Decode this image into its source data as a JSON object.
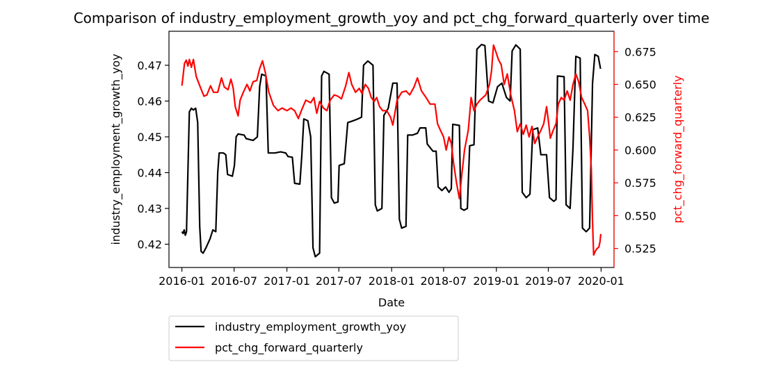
{
  "chart_data": {
    "type": "line",
    "title": "Comparison of industry_employment_growth_yoy and pct_chg_forward_quarterly over time",
    "xlabel": "Date",
    "ylabel_left": "industry_employment_growth_yoy",
    "ylabel_right": "pct_chg_forward_quarterly",
    "x_ticks": [
      "2016-01",
      "2016-07",
      "2017-01",
      "2017-07",
      "2018-01",
      "2018-07",
      "2019-01",
      "2019-07",
      "2020-01"
    ],
    "y_left_ticks": [
      "0.42",
      "0.43",
      "0.44",
      "0.45",
      "0.46",
      "0.47"
    ],
    "y_right_ticks": [
      "0.525",
      "0.550",
      "0.575",
      "0.600",
      "0.625",
      "0.650",
      "0.675"
    ],
    "y_left_lim": [
      0.4135,
      0.4795
    ],
    "y_right_lim": [
      0.5105,
      0.6905
    ],
    "x_lim": [
      "2015-11-17",
      "2020-02-15"
    ],
    "legend_position": "below-left",
    "grid": false,
    "colors": {
      "left_series": "#000000",
      "right_series": "#ff0000"
    },
    "series": [
      {
        "name": "industry_employment_growth_yoy",
        "axis": "left",
        "color": "#000000",
        "points": [
          [
            "2016-01-01",
            0.4235
          ],
          [
            "2016-01-05",
            0.423
          ],
          [
            "2016-01-09",
            0.424
          ],
          [
            "2016-01-13",
            0.4225
          ],
          [
            "2016-01-17",
            0.4235
          ],
          [
            "2016-01-22",
            0.44
          ],
          [
            "2016-01-27",
            0.457
          ],
          [
            "2016-02-03",
            0.458
          ],
          [
            "2016-02-10",
            0.4575
          ],
          [
            "2016-02-18",
            0.458
          ],
          [
            "2016-02-25",
            0.454
          ],
          [
            "2016-03-03",
            0.425
          ],
          [
            "2016-03-08",
            0.418
          ],
          [
            "2016-03-15",
            0.4175
          ],
          [
            "2016-03-25",
            0.419
          ],
          [
            "2016-04-08",
            0.4215
          ],
          [
            "2016-04-18",
            0.424
          ],
          [
            "2016-04-28",
            0.4235
          ],
          [
            "2016-05-05",
            0.44
          ],
          [
            "2016-05-10",
            0.4455
          ],
          [
            "2016-05-25",
            0.4455
          ],
          [
            "2016-06-02",
            0.445
          ],
          [
            "2016-06-08",
            0.4395
          ],
          [
            "2016-06-25",
            0.439
          ],
          [
            "2016-07-02",
            0.442
          ],
          [
            "2016-07-08",
            0.45
          ],
          [
            "2016-07-15",
            0.4508
          ],
          [
            "2016-08-05",
            0.4505
          ],
          [
            "2016-08-12",
            0.4495
          ],
          [
            "2016-09-05",
            0.449
          ],
          [
            "2016-09-20",
            0.45
          ],
          [
            "2016-09-28",
            0.464
          ],
          [
            "2016-10-05",
            0.4675
          ],
          [
            "2016-10-20",
            0.467
          ],
          [
            "2016-10-28",
            0.4455
          ],
          [
            "2016-11-20",
            0.4455
          ],
          [
            "2016-12-10",
            0.4458
          ],
          [
            "2016-12-28",
            0.4455
          ],
          [
            "2017-01-05",
            0.4445
          ],
          [
            "2017-01-20",
            0.4443
          ],
          [
            "2017-01-28",
            0.437
          ],
          [
            "2017-02-15",
            0.4368
          ],
          [
            "2017-02-22",
            0.445
          ],
          [
            "2017-03-01",
            0.455
          ],
          [
            "2017-03-15",
            0.4545
          ],
          [
            "2017-03-25",
            0.45
          ],
          [
            "2017-04-02",
            0.419
          ],
          [
            "2017-04-10",
            0.4165
          ],
          [
            "2017-04-25",
            0.4175
          ],
          [
            "2017-05-02",
            0.467
          ],
          [
            "2017-05-10",
            0.4683
          ],
          [
            "2017-05-28",
            0.4675
          ],
          [
            "2017-06-05",
            0.433
          ],
          [
            "2017-06-15",
            0.4315
          ],
          [
            "2017-06-28",
            0.4318
          ],
          [
            "2017-07-02",
            0.442
          ],
          [
            "2017-07-20",
            0.4425
          ],
          [
            "2017-08-01",
            0.454
          ],
          [
            "2017-08-20",
            0.4545
          ],
          [
            "2017-09-05",
            0.455
          ],
          [
            "2017-09-18",
            0.4555
          ],
          [
            "2017-09-25",
            0.47
          ],
          [
            "2017-10-10",
            0.4712
          ],
          [
            "2017-10-28",
            0.47
          ],
          [
            "2017-11-05",
            0.431
          ],
          [
            "2017-11-12",
            0.4293
          ],
          [
            "2017-11-28",
            0.43
          ],
          [
            "2017-12-05",
            0.456
          ],
          [
            "2017-12-20",
            0.458
          ],
          [
            "2018-01-05",
            0.465
          ],
          [
            "2018-01-20",
            0.465
          ],
          [
            "2018-01-28",
            0.427
          ],
          [
            "2018-02-05",
            0.4245
          ],
          [
            "2018-02-20",
            0.425
          ],
          [
            "2018-02-26",
            0.4505
          ],
          [
            "2018-03-15",
            0.4505
          ],
          [
            "2018-04-01",
            0.451
          ],
          [
            "2018-04-10",
            0.4525
          ],
          [
            "2018-04-30",
            0.4525
          ],
          [
            "2018-05-05",
            0.448
          ],
          [
            "2018-05-25",
            0.446
          ],
          [
            "2018-06-05",
            0.446
          ],
          [
            "2018-06-12",
            0.436
          ],
          [
            "2018-06-25",
            0.435
          ],
          [
            "2018-07-08",
            0.436
          ],
          [
            "2018-07-20",
            0.4345
          ],
          [
            "2018-07-28",
            0.4355
          ],
          [
            "2018-08-02",
            0.4535
          ],
          [
            "2018-08-25",
            0.4532
          ],
          [
            "2018-08-30",
            0.43
          ],
          [
            "2018-09-10",
            0.4295
          ],
          [
            "2018-09-22",
            0.43
          ],
          [
            "2018-09-30",
            0.4475
          ],
          [
            "2018-10-15",
            0.4478
          ],
          [
            "2018-10-25",
            0.4745
          ],
          [
            "2018-11-10",
            0.4758
          ],
          [
            "2018-11-22",
            0.4755
          ],
          [
            "2018-12-05",
            0.46
          ],
          [
            "2018-12-20",
            0.4595
          ],
          [
            "2019-01-05",
            0.464
          ],
          [
            "2019-01-20",
            0.465
          ],
          [
            "2019-02-05",
            0.461
          ],
          [
            "2019-02-18",
            0.46
          ],
          [
            "2019-02-25",
            0.474
          ],
          [
            "2019-03-10",
            0.4757
          ],
          [
            "2019-03-25",
            0.4745
          ],
          [
            "2019-04-01",
            0.4345
          ],
          [
            "2019-04-15",
            0.433
          ],
          [
            "2019-04-28",
            0.434
          ],
          [
            "2019-05-08",
            0.452
          ],
          [
            "2019-05-25",
            0.4525
          ],
          [
            "2019-06-05",
            0.445
          ],
          [
            "2019-06-25",
            0.445
          ],
          [
            "2019-07-05",
            0.433
          ],
          [
            "2019-07-20",
            0.432
          ],
          [
            "2019-07-28",
            0.4325
          ],
          [
            "2019-08-02",
            0.467
          ],
          [
            "2019-08-25",
            0.4668
          ],
          [
            "2019-09-01",
            0.431
          ],
          [
            "2019-09-15",
            0.43
          ],
          [
            "2019-09-25",
            0.447
          ],
          [
            "2019-10-05",
            0.4725
          ],
          [
            "2019-10-20",
            0.472
          ],
          [
            "2019-10-28",
            0.4245
          ],
          [
            "2019-11-10",
            0.4235
          ],
          [
            "2019-11-22",
            0.4245
          ],
          [
            "2019-12-02",
            0.465
          ],
          [
            "2019-12-10",
            0.473
          ],
          [
            "2019-12-22",
            0.4725
          ],
          [
            "2019-12-30",
            0.469
          ]
        ]
      },
      {
        "name": "pct_chg_forward_quarterly",
        "axis": "right",
        "color": "#ff0000",
        "points": [
          [
            "2016-01-01",
            0.649
          ],
          [
            "2016-01-05",
            0.656
          ],
          [
            "2016-01-10",
            0.666
          ],
          [
            "2016-01-16",
            0.6685
          ],
          [
            "2016-01-22",
            0.664
          ],
          [
            "2016-01-27",
            0.669
          ],
          [
            "2016-02-03",
            0.663
          ],
          [
            "2016-02-10",
            0.669
          ],
          [
            "2016-02-20",
            0.656
          ],
          [
            "2016-03-05",
            0.648
          ],
          [
            "2016-03-18",
            0.641
          ],
          [
            "2016-03-28",
            0.642
          ],
          [
            "2016-04-10",
            0.649
          ],
          [
            "2016-04-20",
            0.644
          ],
          [
            "2016-05-05",
            0.644
          ],
          [
            "2016-05-18",
            0.655
          ],
          [
            "2016-05-28",
            0.648
          ],
          [
            "2016-06-10",
            0.646
          ],
          [
            "2016-06-20",
            0.654
          ],
          [
            "2016-06-28",
            0.647
          ],
          [
            "2016-07-05",
            0.633
          ],
          [
            "2016-07-15",
            0.626
          ],
          [
            "2016-07-22",
            0.638
          ],
          [
            "2016-08-02",
            0.644
          ],
          [
            "2016-08-15",
            0.65
          ],
          [
            "2016-08-25",
            0.645
          ],
          [
            "2016-09-05",
            0.652
          ],
          [
            "2016-09-18",
            0.653
          ],
          [
            "2016-09-28",
            0.662
          ],
          [
            "2016-10-08",
            0.668
          ],
          [
            "2016-10-18",
            0.659
          ],
          [
            "2016-10-30",
            0.644
          ],
          [
            "2016-11-15",
            0.634
          ],
          [
            "2016-12-01",
            0.63
          ],
          [
            "2016-12-15",
            0.632
          ],
          [
            "2017-01-01",
            0.63
          ],
          [
            "2017-01-15",
            0.632
          ],
          [
            "2017-01-28",
            0.63
          ],
          [
            "2017-02-10",
            0.624
          ],
          [
            "2017-02-22",
            0.631
          ],
          [
            "2017-03-08",
            0.638
          ],
          [
            "2017-03-25",
            0.636
          ],
          [
            "2017-04-05",
            0.64
          ],
          [
            "2017-04-15",
            0.628
          ],
          [
            "2017-04-25",
            0.637
          ],
          [
            "2017-05-08",
            0.632
          ],
          [
            "2017-05-20",
            0.63
          ],
          [
            "2017-06-01",
            0.638
          ],
          [
            "2017-06-15",
            0.642
          ],
          [
            "2017-06-28",
            0.641
          ],
          [
            "2017-07-10",
            0.639
          ],
          [
            "2017-07-25",
            0.649
          ],
          [
            "2017-08-05",
            0.659
          ],
          [
            "2017-08-15",
            0.65
          ],
          [
            "2017-08-28",
            0.644
          ],
          [
            "2017-09-10",
            0.647
          ],
          [
            "2017-09-20",
            0.643
          ],
          [
            "2017-10-01",
            0.65
          ],
          [
            "2017-10-12",
            0.647
          ],
          [
            "2017-10-22",
            0.64
          ],
          [
            "2017-11-01",
            0.637
          ],
          [
            "2017-11-10",
            0.64
          ],
          [
            "2017-11-20",
            0.633
          ],
          [
            "2017-12-01",
            0.63
          ],
          [
            "2017-12-15",
            0.63
          ],
          [
            "2017-12-28",
            0.625
          ],
          [
            "2018-01-05",
            0.619
          ],
          [
            "2018-01-20",
            0.638
          ],
          [
            "2018-02-05",
            0.644
          ],
          [
            "2018-02-20",
            0.645
          ],
          [
            "2018-03-05",
            0.642
          ],
          [
            "2018-03-20",
            0.648
          ],
          [
            "2018-04-01",
            0.655
          ],
          [
            "2018-04-15",
            0.645
          ],
          [
            "2018-05-01",
            0.64
          ],
          [
            "2018-05-15",
            0.635
          ],
          [
            "2018-06-01",
            0.635
          ],
          [
            "2018-06-10",
            0.62
          ],
          [
            "2018-06-20",
            0.615
          ],
          [
            "2018-07-01",
            0.61
          ],
          [
            "2018-07-10",
            0.6
          ],
          [
            "2018-07-20",
            0.61
          ],
          [
            "2018-07-28",
            0.605
          ],
          [
            "2018-08-05",
            0.59
          ],
          [
            "2018-08-15",
            0.575
          ],
          [
            "2018-08-25",
            0.563
          ],
          [
            "2018-09-02",
            0.58
          ],
          [
            "2018-09-12",
            0.6
          ],
          [
            "2018-09-25",
            0.615
          ],
          [
            "2018-10-05",
            0.64
          ],
          [
            "2018-10-15",
            0.63
          ],
          [
            "2018-10-25",
            0.635
          ],
          [
            "2018-11-05",
            0.638
          ],
          [
            "2018-11-15",
            0.64
          ],
          [
            "2018-11-25",
            0.642
          ],
          [
            "2018-12-08",
            0.65
          ],
          [
            "2018-12-15",
            0.66
          ],
          [
            "2018-12-22",
            0.68
          ],
          [
            "2018-12-30",
            0.675
          ],
          [
            "2019-01-08",
            0.669
          ],
          [
            "2019-01-18",
            0.665
          ],
          [
            "2019-01-28",
            0.65
          ],
          [
            "2019-02-08",
            0.658
          ],
          [
            "2019-02-20",
            0.642
          ],
          [
            "2019-03-05",
            0.63
          ],
          [
            "2019-03-15",
            0.614
          ],
          [
            "2019-03-25",
            0.62
          ],
          [
            "2019-04-05",
            0.612
          ],
          [
            "2019-04-15",
            0.619
          ],
          [
            "2019-04-25",
            0.61
          ],
          [
            "2019-05-05",
            0.618
          ],
          [
            "2019-05-15",
            0.605
          ],
          [
            "2019-05-25",
            0.61
          ],
          [
            "2019-06-05",
            0.615
          ],
          [
            "2019-06-15",
            0.62
          ],
          [
            "2019-06-25",
            0.633
          ],
          [
            "2019-07-02",
            0.621
          ],
          [
            "2019-07-08",
            0.609
          ],
          [
            "2019-07-18",
            0.615
          ],
          [
            "2019-07-28",
            0.62
          ],
          [
            "2019-08-05",
            0.635
          ],
          [
            "2019-08-15",
            0.64
          ],
          [
            "2019-08-25",
            0.638
          ],
          [
            "2019-09-05",
            0.645
          ],
          [
            "2019-09-15",
            0.638
          ],
          [
            "2019-09-25",
            0.65
          ],
          [
            "2019-10-05",
            0.658
          ],
          [
            "2019-10-15",
            0.652
          ],
          [
            "2019-10-25",
            0.64
          ],
          [
            "2019-11-05",
            0.635
          ],
          [
            "2019-11-15",
            0.63
          ],
          [
            "2019-11-22",
            0.61
          ],
          [
            "2019-11-28",
            0.585
          ],
          [
            "2019-12-02",
            0.545
          ],
          [
            "2019-12-06",
            0.52
          ],
          [
            "2019-12-12",
            0.523
          ],
          [
            "2019-12-18",
            0.525
          ],
          [
            "2019-12-24",
            0.526
          ],
          [
            "2019-12-28",
            0.53
          ],
          [
            "2019-12-31",
            0.536
          ]
        ]
      }
    ]
  }
}
